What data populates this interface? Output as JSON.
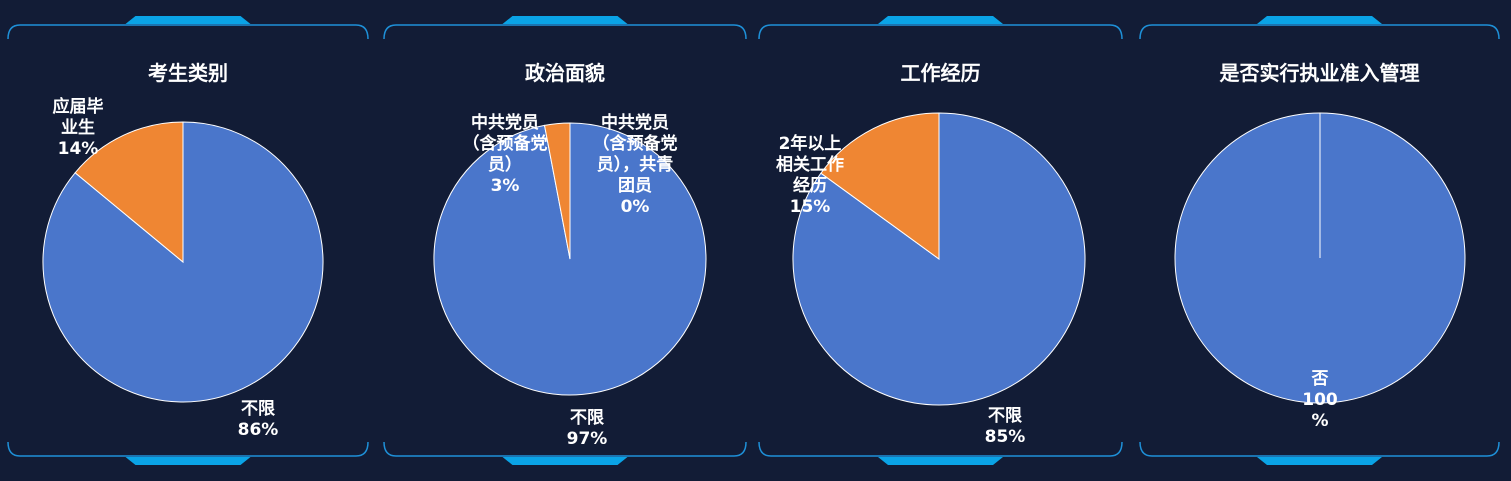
{
  "theme": {
    "background": "#121c36",
    "frame_color": "#1e90d8",
    "accent_color": "#0aa3e6",
    "slice_stroke": "#ffffff",
    "label_color": "#ffffff"
  },
  "chart_data": [
    {
      "type": "pie",
      "title": "考生类别",
      "slices": [
        {
          "label": "不限",
          "value": 86,
          "color": "#4a76cb",
          "text": "不限\n86%"
        },
        {
          "label": "应届毕业生",
          "value": 14,
          "color": "#ef8633",
          "text": "应届毕\n业生\n14%"
        }
      ]
    },
    {
      "type": "pie",
      "title": "政治面貌",
      "slices": [
        {
          "label": "不限",
          "value": 97,
          "color": "#4a76cb",
          "text": "不限\n97%"
        },
        {
          "label": "中共党员（含预备党员）",
          "value": 3,
          "color": "#ef8633",
          "text": "中共党员\n（含预备党\n员）\n3%"
        },
        {
          "label": "中共党员（含预备党员），共青团员",
          "value": 0,
          "color": "#9aa5b5",
          "text": "中共党员\n（含预备党\n员），共青\n团员\n0%"
        }
      ]
    },
    {
      "type": "pie",
      "title": "工作经历",
      "slices": [
        {
          "label": "不限",
          "value": 85,
          "color": "#4a76cb",
          "text": "不限\n85%"
        },
        {
          "label": "2年以上相关工作经历",
          "value": 15,
          "color": "#ef8633",
          "text": "2年以上\n相关工作\n经历\n15%"
        }
      ]
    },
    {
      "type": "pie",
      "title": "是否实行执业准入管理",
      "slices": [
        {
          "label": "否",
          "value": 100,
          "color": "#4a76cb",
          "text": "否\n100\n%"
        }
      ]
    }
  ]
}
